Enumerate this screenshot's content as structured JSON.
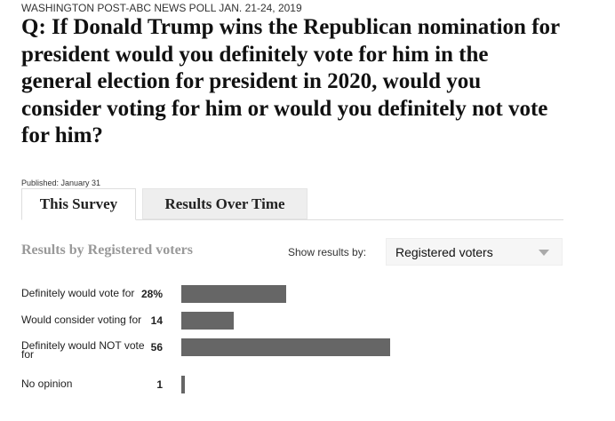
{
  "header": {
    "kicker": "WASHINGTON POST-ABC NEWS POLL JAN. 21-24, 2019",
    "question": "Q: If Donald Trump wins the Republican nomination for president would you definitely vote for him in the general election for president in 2020, would you consider voting for him or would you definitely not vote for him?",
    "published": "Published: January 31"
  },
  "tabs": [
    "This Survey",
    "Results Over Time"
  ],
  "filter": {
    "label": "Show results by:",
    "selected": "Registered voters"
  },
  "chart_data": {
    "type": "bar",
    "orientation": "horizontal",
    "title": "Results by Registered voters",
    "categories": [
      "Definitely would vote for",
      "Would consider voting for",
      "Definitely would NOT vote for",
      "No opinion"
    ],
    "values": [
      28,
      14,
      56,
      1
    ],
    "value_labels": [
      "28%",
      "14",
      "56",
      "1"
    ],
    "color": "#666666"
  }
}
